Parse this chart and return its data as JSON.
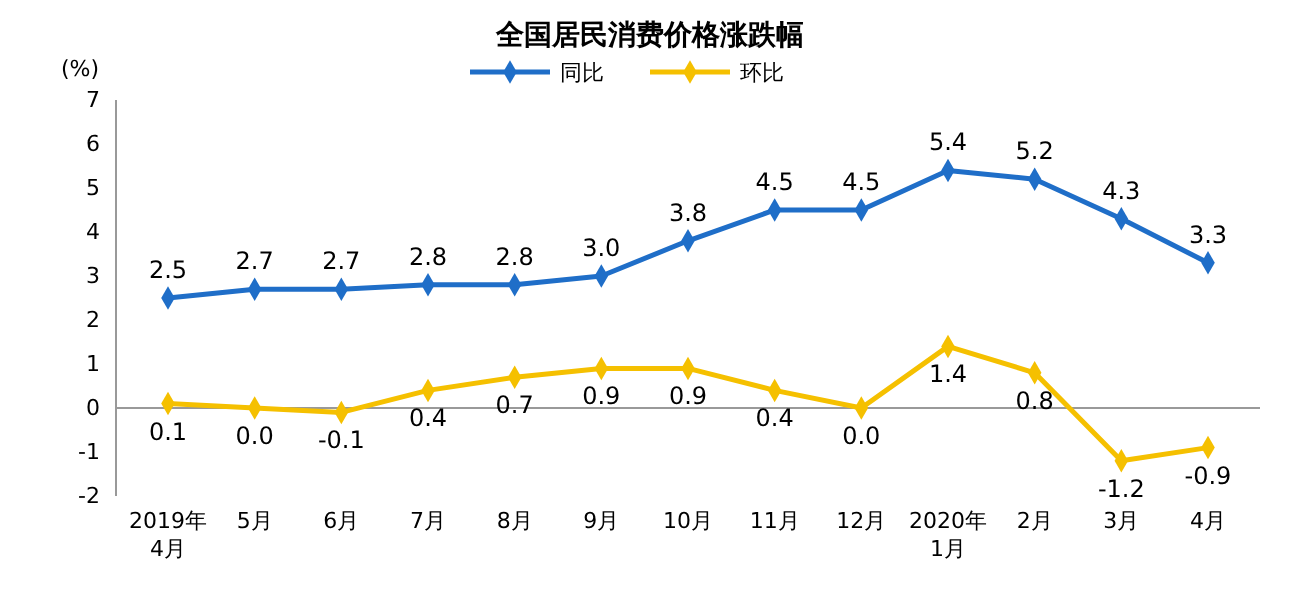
{
  "chart_data": {
    "type": "line",
    "title": "全国居民消费价格涨跌幅",
    "ylabel": "(%)",
    "categories": [
      "2019年\n4月",
      "5月",
      "6月",
      "7月",
      "8月",
      "9月",
      "10月",
      "11月",
      "12月",
      "2020年\n1月",
      "2月",
      "3月",
      "4月"
    ],
    "series": [
      {
        "name": "同比",
        "color": "#1f6ec8",
        "values": [
          2.5,
          2.7,
          2.7,
          2.8,
          2.8,
          3.0,
          3.8,
          4.5,
          4.5,
          5.4,
          5.2,
          4.3,
          3.3
        ],
        "value_labels": [
          "2.5",
          "2.7",
          "2.7",
          "2.8",
          "2.8",
          "3.0",
          "3.8",
          "4.5",
          "4.5",
          "5.4",
          "5.2",
          "4.3",
          "3.3"
        ]
      },
      {
        "name": "环比",
        "color": "#f5c000",
        "values": [
          0.1,
          0.0,
          -0.1,
          0.4,
          0.7,
          0.9,
          0.9,
          0.4,
          0.0,
          1.4,
          0.8,
          -1.2,
          -0.9
        ],
        "value_labels": [
          "0.1",
          "0.0",
          "-0.1",
          "0.4",
          "0.7",
          "0.9",
          "0.9",
          "0.4",
          "0.0",
          "1.4",
          "0.8",
          "-1.2",
          "-0.9"
        ]
      }
    ],
    "ylim": [
      -2,
      7
    ],
    "yticks": [
      -2,
      -1,
      0,
      1,
      2,
      3,
      4,
      5,
      6,
      7
    ],
    "legend": "top",
    "marker": "diamond",
    "line_style": "solid"
  }
}
